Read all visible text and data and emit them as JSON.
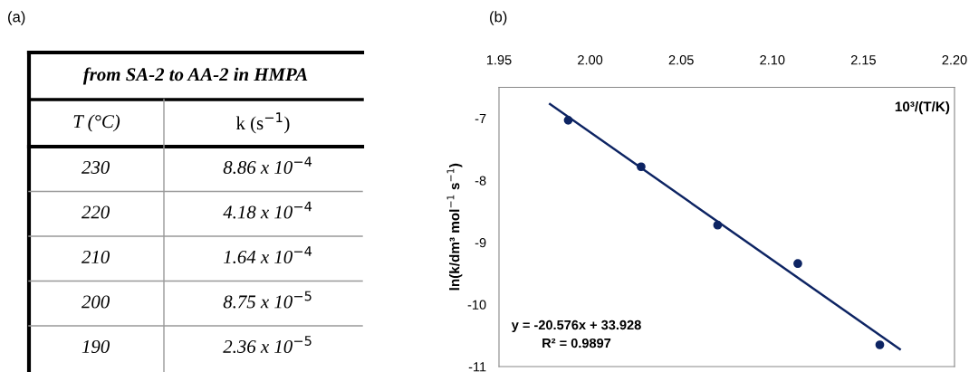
{
  "chart_data": [
    {
      "type": "other",
      "annotations": [
        "(a)"
      ],
      "title": "from SA-2 to AA-2 in HMPA",
      "categories": [
        "T (°C)",
        "k (s$^{−1}$)"
      ],
      "cell_labels": [
        [
          "230",
          "8.86 x 10$^{−4}$"
        ],
        [
          "220",
          "4.18 x 10$^{−4}$"
        ],
        [
          "210",
          "1.64 x 10$^{−4}$"
        ],
        [
          "200",
          "8.75 x 10$^{−5}$"
        ],
        [
          "190",
          "2.36 x 10$^{−5}$"
        ]
      ]
    },
    {
      "type": "scatter",
      "annotations": [
        "(b)",
        "y = -20.576x + 33.928",
        "R² = 0.9897"
      ],
      "xlabel": "10³/(T/K)",
      "ylabel": "ln(k/dm³ mol$^{−1}$ s$^{−1}$)",
      "xlim": [
        1.95,
        2.2
      ],
      "xticks": [
        {
          "value": 1.95,
          "label": "1.95"
        },
        {
          "value": 2.0,
          "label": "2.00"
        },
        {
          "value": 2.05,
          "label": "2.05"
        },
        {
          "value": 2.1,
          "label": "2.10"
        },
        {
          "value": 2.15,
          "label": "2.15"
        },
        {
          "value": 2.2,
          "label": "2.20"
        }
      ],
      "ylim": [
        -11,
        -6.5
      ],
      "yticks": [
        -11,
        -10,
        -9,
        -8,
        -7
      ],
      "grid": false,
      "legend": false,
      "marker": "circle",
      "series": [
        {
          "type": "scatter",
          "color": "#0d2463",
          "x": [
            1.988,
            2.028,
            2.07,
            2.114,
            2.159
          ],
          "values": [
            -7.03,
            -7.78,
            -8.72,
            -9.34,
            -10.65
          ]
        },
        {
          "type": "line",
          "color": "#0d2463",
          "x": [
            1.978,
            2.17
          ],
          "values": [
            -6.77,
            -10.72
          ],
          "line_style": "solid",
          "marker": "none"
        }
      ]
    }
  ]
}
